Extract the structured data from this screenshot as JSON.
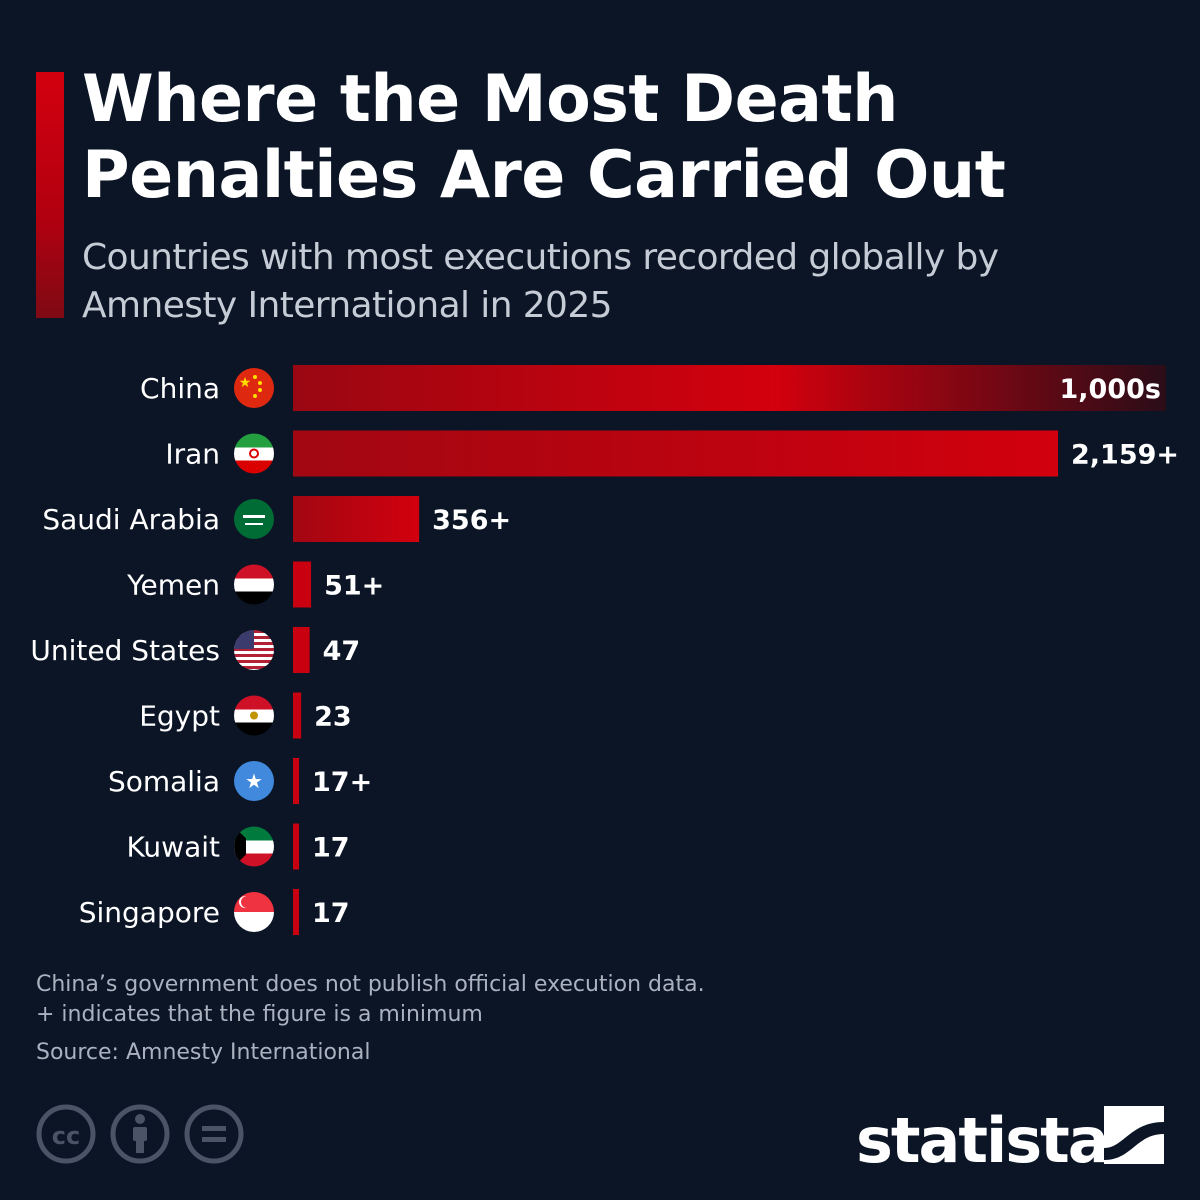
{
  "title": "Where the Most Death Penalties Are Carried Out",
  "subtitle": "Countries with most executions recorded globally by Amnesty International in 2025",
  "chart_data": {
    "type": "bar",
    "orientation": "horizontal",
    "categories": [
      "China",
      "Iran",
      "Saudi Arabia",
      "Yemen",
      "United States",
      "Egypt",
      "Somalia",
      "Kuwait",
      "Singapore"
    ],
    "values": [
      null,
      2159,
      356,
      51,
      47,
      23,
      17,
      17,
      17
    ],
    "value_labels": [
      "1,000s",
      "2,159+",
      "356+",
      "51+",
      "47",
      "23",
      "17+",
      "17",
      "17"
    ],
    "flags": [
      "china-flag",
      "iran-flag",
      "saudi-arabia-flag",
      "yemen-flag",
      "united-states-flag",
      "egypt-flag",
      "somalia-flag",
      "kuwait-flag",
      "singapore-flag"
    ],
    "bar_color": "#c8000f",
    "title": "",
    "xlabel": "",
    "ylabel": "",
    "grid": false,
    "legend": "none"
  },
  "notes": {
    "line1": "China’s government does not publish official execution data.",
    "line2": "+ indicates that the figure is a minimum",
    "source": "Source: Amnesty International"
  },
  "licenses": [
    "cc-icon",
    "attribution-icon",
    "no-derivatives-icon"
  ],
  "brand": {
    "name": "statista"
  },
  "colors": {
    "background": "#0b1526",
    "accent": "#c8000f",
    "text": "#ffffff",
    "muted": "#aab2bf"
  }
}
